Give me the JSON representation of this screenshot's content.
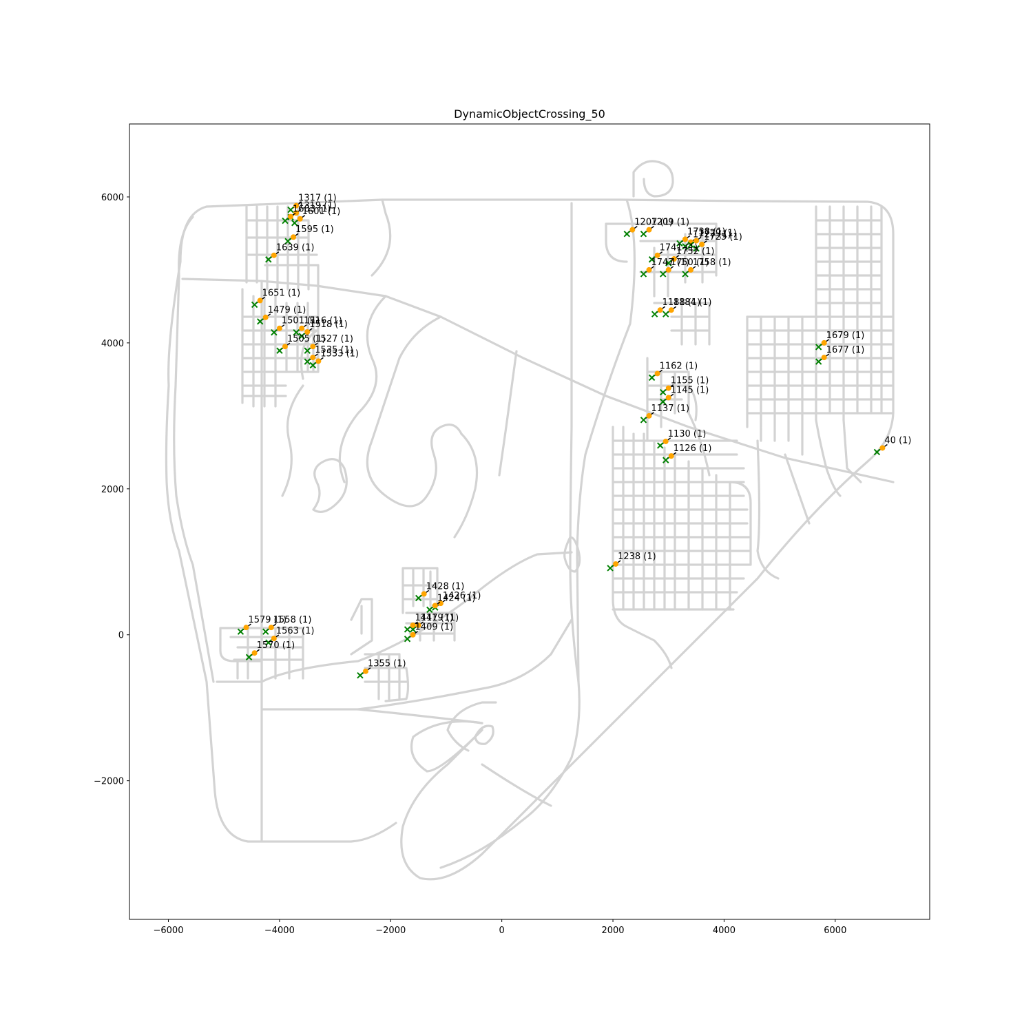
{
  "chart_data": {
    "type": "scatter",
    "title": "DynamicObjectCrossing_50",
    "xlabel": "",
    "ylabel": "",
    "xlim": [
      -6700,
      7700
    ],
    "ylim": [
      -3900,
      7000
    ],
    "xticks": [
      -6000,
      -4000,
      -2000,
      0,
      2000,
      4000,
      6000
    ],
    "yticks": [
      -2000,
      0,
      2000,
      4000,
      6000
    ],
    "xtick_labels": [
      "−6000",
      "−4000",
      "−2000",
      "0",
      "2000",
      "4000",
      "6000"
    ],
    "ytick_labels": [
      "−2000",
      "0",
      "2000",
      "4000",
      "6000"
    ],
    "grid": false,
    "background_layer": "road network (light gray lines)",
    "colors": {
      "road": "#d3d3d3",
      "start_marker": "#ffa500",
      "end_marker": "#008000",
      "route": "#000000"
    },
    "markers": {
      "start": "orange dot",
      "end": "green x"
    },
    "points": [
      {
        "label": "1317 (1)",
        "x": -3700,
        "y": 5880
      },
      {
        "label": "1319 (1)",
        "x": -3700,
        "y": 5780
      },
      {
        "label": "1601 (1)",
        "x": -3630,
        "y": 5700
      },
      {
        "label": "1603 (1)",
        "x": -3800,
        "y": 5730
      },
      {
        "label": "1595 (1)",
        "x": -3750,
        "y": 5450
      },
      {
        "label": "1639 (1)",
        "x": -4100,
        "y": 5200
      },
      {
        "label": "1651 (1)",
        "x": -4350,
        "y": 4580
      },
      {
        "label": "1479 (1)",
        "x": -4250,
        "y": 4350
      },
      {
        "label": "1518 (1)",
        "x": -3500,
        "y": 4150
      },
      {
        "label": "1516 (1)",
        "x": -3600,
        "y": 4200
      },
      {
        "label": "1501 (1)",
        "x": -4000,
        "y": 4200
      },
      {
        "label": "1505 (1)",
        "x": -3900,
        "y": 3950
      },
      {
        "label": "1527 (1)",
        "x": -3400,
        "y": 3950
      },
      {
        "label": "1535 (1)",
        "x": -3400,
        "y": 3800
      },
      {
        "label": "1533 (1)",
        "x": -3300,
        "y": 3750
      },
      {
        "label": "1207 (1)",
        "x": 2350,
        "y": 5550
      },
      {
        "label": "1209 (1)",
        "x": 2650,
        "y": 5550
      },
      {
        "label": "1738 (1)",
        "x": 3300,
        "y": 5420
      },
      {
        "label": "1727 (1)",
        "x": 3400,
        "y": 5380
      },
      {
        "label": "1729 (1)",
        "x": 3500,
        "y": 5400
      },
      {
        "label": "1725 (1)",
        "x": 3600,
        "y": 5350
      },
      {
        "label": "1741 (1)",
        "x": 2800,
        "y": 5200
      },
      {
        "label": "1752 (1)",
        "x": 3100,
        "y": 5150
      },
      {
        "label": "1747 (1)",
        "x": 2650,
        "y": 5000
      },
      {
        "label": "1750 (1)",
        "x": 3000,
        "y": 5000
      },
      {
        "label": "1758 (1)",
        "x": 3400,
        "y": 5000
      },
      {
        "label": "1188 (1)",
        "x": 2850,
        "y": 4450
      },
      {
        "label": "1184 (1)",
        "x": 3050,
        "y": 4450
      },
      {
        "label": "1679 (1)",
        "x": 5800,
        "y": 4000
      },
      {
        "label": "1677 (1)",
        "x": 5800,
        "y": 3800
      },
      {
        "label": "1162 (1)",
        "x": 2800,
        "y": 3580
      },
      {
        "label": "1155 (1)",
        "x": 3000,
        "y": 3380
      },
      {
        "label": "1145 (1)",
        "x": 3000,
        "y": 3250
      },
      {
        "label": "1137 (1)",
        "x": 2650,
        "y": 3000
      },
      {
        "label": "1130 (1)",
        "x": 2950,
        "y": 2650
      },
      {
        "label": "1126 (1)",
        "x": 3050,
        "y": 2450
      },
      {
        "label": "40 (1)",
        "x": 6850,
        "y": 2560
      },
      {
        "label": "1238 (1)",
        "x": 2050,
        "y": 970
      },
      {
        "label": "1428 (1)",
        "x": -1400,
        "y": 560
      },
      {
        "label": "1426 (1)",
        "x": -1100,
        "y": 430
      },
      {
        "label": "1424 (1)",
        "x": -1200,
        "y": 400
      },
      {
        "label": "1419 (1)",
        "x": -1500,
        "y": 130
      },
      {
        "label": "1417 (1)",
        "x": -1600,
        "y": 130
      },
      {
        "label": "1409 (1)",
        "x": -1600,
        "y": 0
      },
      {
        "label": "1579 (1)",
        "x": -4600,
        "y": 100
      },
      {
        "label": "1558 (1)",
        "x": -4150,
        "y": 100
      },
      {
        "label": "1563 (1)",
        "x": -4100,
        "y": -50
      },
      {
        "label": "1570 (1)",
        "x": -4450,
        "y": -250
      },
      {
        "label": "1355 (1)",
        "x": -2450,
        "y": -500
      }
    ]
  }
}
